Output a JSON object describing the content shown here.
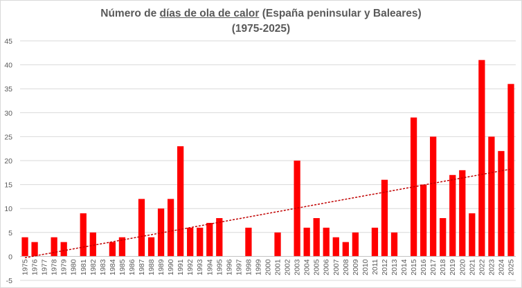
{
  "chart_data": {
    "type": "bar",
    "title": {
      "prefix": "Número de ",
      "underlined": "días de ola de calor",
      "suffix": " (España peninsular y Baleares)",
      "line2": "(1975-2025)"
    },
    "xlabel": "",
    "ylabel": "",
    "ylim": [
      -5,
      45
    ],
    "yticks": [
      -5,
      0,
      5,
      10,
      15,
      20,
      25,
      30,
      35,
      40,
      45
    ],
    "grid": true,
    "legend": "none",
    "trendline": {
      "type": "linear",
      "style": "dashed"
    },
    "colors": {
      "bar": "#ff0000",
      "trend": "#c00000",
      "grid": "#d9d9d9",
      "axis": "#bfbfbf"
    },
    "categories": [
      "1975",
      "1976",
      "1977",
      "1978",
      "1979",
      "1980",
      "1981",
      "1982",
      "1983",
      "1984",
      "1985",
      "1986",
      "1987",
      "1988",
      "1989",
      "1990",
      "1991",
      "1992",
      "1993",
      "1994",
      "1995",
      "1996",
      "1997",
      "1998",
      "1999",
      "2000",
      "2001",
      "2002",
      "2003",
      "2004",
      "2005",
      "2006",
      "2007",
      "2008",
      "2009",
      "2010",
      "2011",
      "2012",
      "2013",
      "2014",
      "2015",
      "2016",
      "2017",
      "2018",
      "2019",
      "2020",
      "2021",
      "2022",
      "2023",
      "2024",
      "2025"
    ],
    "values": [
      4,
      3,
      0,
      4,
      3,
      0,
      9,
      5,
      0,
      3,
      4,
      0,
      12,
      4,
      10,
      12,
      23,
      6,
      6,
      7,
      8,
      0,
      0,
      6,
      0,
      0,
      5,
      0,
      20,
      6,
      8,
      6,
      4,
      3,
      5,
      0,
      6,
      16,
      5,
      0,
      29,
      15,
      25,
      8,
      17,
      18,
      9,
      41,
      25,
      22,
      36
    ]
  }
}
